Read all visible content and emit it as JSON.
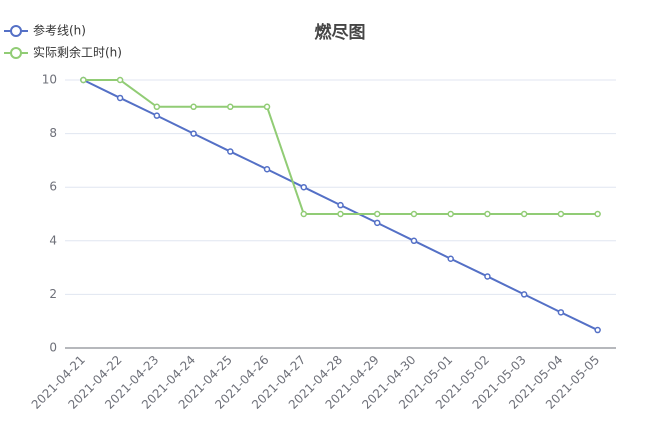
{
  "chart_data": {
    "type": "line",
    "title": "燃尽图",
    "categories": [
      "2021-04-21",
      "2021-04-22",
      "2021-04-23",
      "2021-04-24",
      "2021-04-25",
      "2021-04-26",
      "2021-04-27",
      "2021-04-28",
      "2021-04-29",
      "2021-04-30",
      "2021-05-01",
      "2021-05-02",
      "2021-05-03",
      "2021-05-04",
      "2021-05-05"
    ],
    "series": [
      {
        "name": "参考线(h)",
        "color": "#5470c6",
        "values": [
          10,
          9.33,
          8.67,
          8,
          7.33,
          6.67,
          6,
          5.33,
          4.67,
          4,
          3.33,
          2.67,
          2,
          1.33,
          0.67
        ]
      },
      {
        "name": "实际剩余工时(h)",
        "color": "#91cc75",
        "values": [
          10,
          10,
          9,
          9,
          9,
          9,
          5,
          5,
          5,
          5,
          5,
          5,
          5,
          5,
          5
        ]
      }
    ],
    "ylim": [
      0,
      10
    ],
    "yticks": [
      0,
      2,
      4,
      6,
      8,
      10
    ],
    "grid": true,
    "legend": "top-left"
  }
}
